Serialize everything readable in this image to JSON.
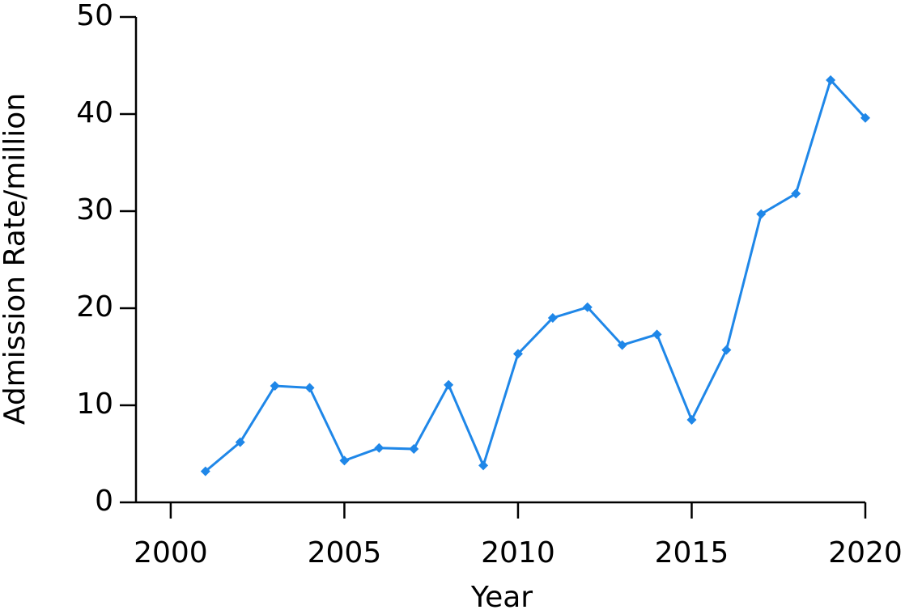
{
  "chart_data": {
    "type": "line",
    "x_label": "Year",
    "y_label": "Admission Rate/million",
    "x": [
      2001,
      2002,
      2003,
      2004,
      2005,
      2006,
      2007,
      2008,
      2009,
      2010,
      2011,
      2012,
      2013,
      2014,
      2015,
      2016,
      2017,
      2018,
      2019,
      2020
    ],
    "series": [
      {
        "name": "Admission Rate/million",
        "color": "#1f87e8",
        "values": [
          3.2,
          6.2,
          12.0,
          11.8,
          4.3,
          5.6,
          5.5,
          12.1,
          3.8,
          15.3,
          19.0,
          20.1,
          16.2,
          17.3,
          8.5,
          15.7,
          29.7,
          31.8,
          43.5,
          39.6
        ]
      }
    ],
    "xlim": [
      1999,
      2020
    ],
    "xticks": [
      2000,
      2005,
      2010,
      2015,
      2020
    ],
    "ylim": [
      0,
      50
    ],
    "yticks": [
      0,
      10,
      20,
      30,
      40,
      50
    ]
  }
}
